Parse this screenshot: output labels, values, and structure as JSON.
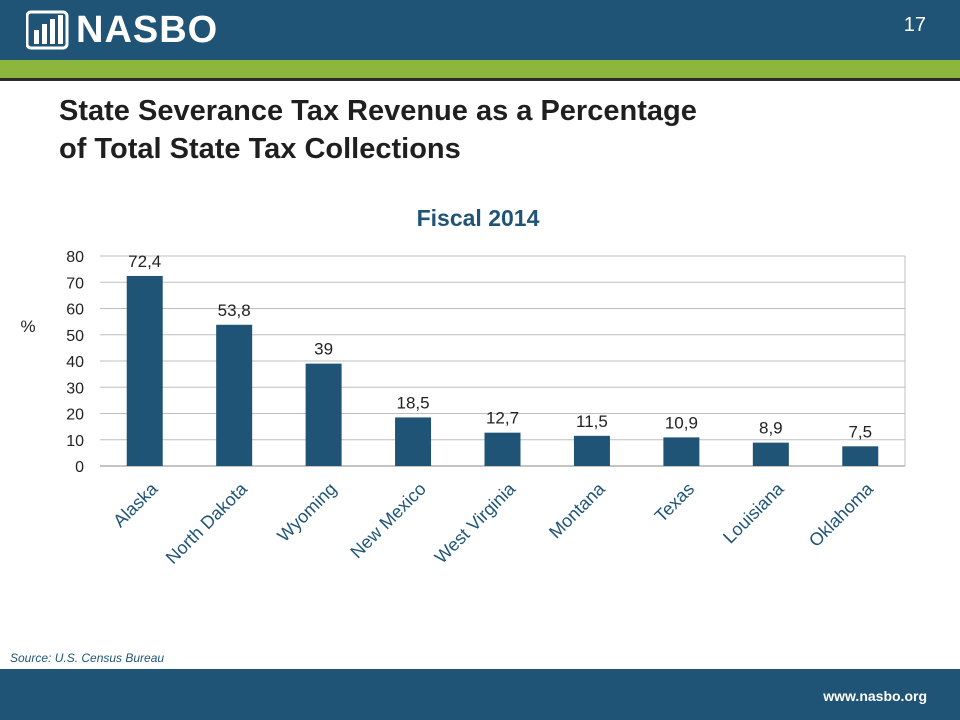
{
  "header": {
    "logo_text": "NASBO",
    "logo_icon": "nasbo-bars-logo-icon",
    "slide_number": "17"
  },
  "slide": {
    "title_line1": "State Severance Tax Revenue as a Percentage",
    "title_line2": "of Total State Tax Collections"
  },
  "colors": {
    "header_blue": "#1f5476",
    "accent_green": "#8db63c",
    "bar_color": "#1f5476",
    "chart_title_color": "#1f5476"
  },
  "chart_data": {
    "type": "bar",
    "title": "Fiscal 2014",
    "ylabel": "%",
    "xlabel": "",
    "categories": [
      "Alaska",
      "North Dakota",
      "Wyoming",
      "New Mexico",
      "West Virginia",
      "Montana",
      "Texas",
      "Louisiana",
      "Oklahoma"
    ],
    "values": [
      72.4,
      53.8,
      39,
      18.5,
      12.7,
      11.5,
      10.9,
      8.9,
      7.5
    ],
    "data_labels": [
      "72,4",
      "53,8",
      "39",
      "18,5",
      "12,7",
      "11,5",
      "10,9",
      "8,9",
      "7,5"
    ],
    "ylim": [
      0,
      80
    ],
    "yticks": [
      "0",
      "10",
      "20",
      "30",
      "40",
      "50",
      "60",
      "70",
      "80"
    ],
    "grid": true,
    "legend": "none"
  },
  "footer": {
    "source": "Source: U.S. Census Bureau",
    "url": "www.nasbo.org"
  }
}
